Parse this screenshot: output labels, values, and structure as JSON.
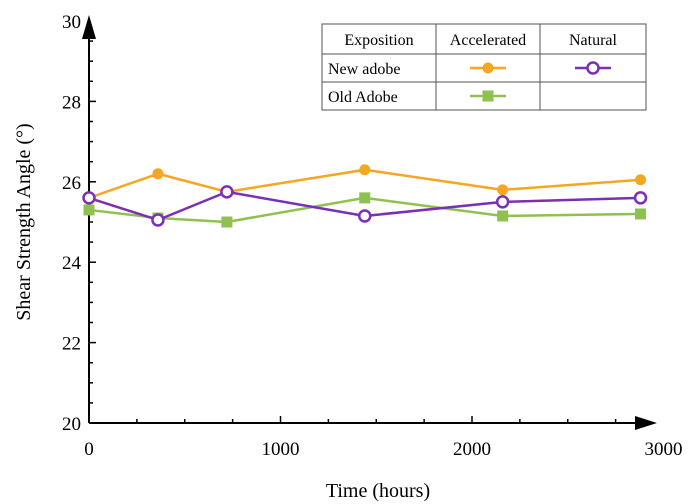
{
  "chart_data": {
    "type": "line",
    "title": "",
    "xlabel": "Time (hours)",
    "ylabel": "Shear Strength Angle (°)",
    "xlim": [
      0,
      3000
    ],
    "ylim": [
      20,
      30
    ],
    "x_ticks": [
      0,
      1000,
      2000,
      3000
    ],
    "y_ticks": [
      20,
      22,
      24,
      26,
      28,
      30
    ],
    "grid": false,
    "legend_placement": "top-right",
    "legend_table": {
      "header": [
        "Exposition",
        "Accelerated",
        "Natural"
      ],
      "rows": [
        {
          "label": "New adobe",
          "accelerated_series": "New adobe - Accelerated",
          "natural_series": "New adobe - Natural"
        },
        {
          "label": "Old Adobe",
          "accelerated_series": "Old Adobe - Accelerated",
          "natural_series": null
        }
      ]
    },
    "series": [
      {
        "key": "new_accel",
        "color": "#f5a623",
        "marker": "filled-circle",
        "x": [
          0,
          360,
          720,
          1440,
          2160,
          2880
        ],
        "y": [
          25.6,
          26.2,
          25.75,
          26.3,
          25.8,
          26.05
        ]
      },
      {
        "key": "old_accel",
        "color": "#8fc150",
        "marker": "filled-square",
        "x": [
          0,
          360,
          720,
          1440,
          2160,
          2880
        ],
        "y": [
          25.3,
          25.1,
          25.0,
          25.6,
          25.15,
          25.2
        ]
      },
      {
        "key": "new_natural",
        "color": "#7a2fb5",
        "marker": "hollow-circle",
        "x": [
          0,
          360,
          720,
          1440,
          2160,
          2880
        ],
        "y": [
          25.6,
          25.05,
          25.75,
          25.15,
          25.5,
          25.6
        ]
      }
    ]
  }
}
